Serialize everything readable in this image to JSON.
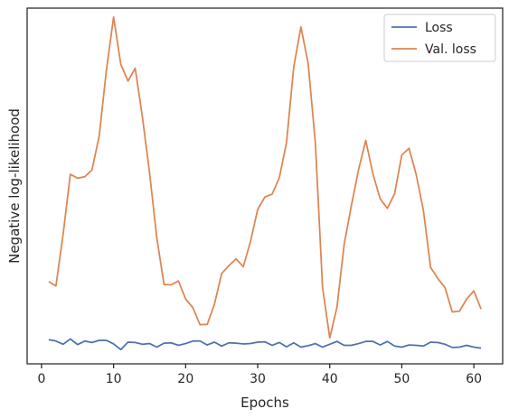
{
  "chart_data": {
    "type": "line",
    "title": "",
    "xlabel": "Epochs",
    "ylabel": "Negative log-likelihood",
    "xlim": [
      -2,
      64
    ],
    "ylim": [
      0,
      100
    ],
    "xticks": [
      0,
      10,
      20,
      30,
      40,
      50,
      60
    ],
    "yticks_shown": false,
    "grid": false,
    "legend_position": "top-right",
    "x": [
      1,
      2,
      3,
      4,
      5,
      6,
      7,
      8,
      9,
      10,
      11,
      12,
      13,
      14,
      15,
      16,
      17,
      18,
      19,
      20,
      21,
      22,
      23,
      24,
      25,
      26,
      27,
      28,
      29,
      30,
      31,
      32,
      33,
      34,
      35,
      36,
      37,
      38,
      39,
      40,
      41,
      42,
      43,
      44,
      45,
      46,
      47,
      48,
      49,
      50,
      51,
      52,
      53,
      54,
      55,
      56,
      57,
      58,
      59,
      60,
      61
    ],
    "series": [
      {
        "name": "Loss",
        "color": "#4c72b0",
        "values": [
          6.8,
          6.4,
          5.5,
          7.0,
          5.4,
          6.4,
          6.0,
          6.6,
          6.6,
          5.6,
          4.0,
          6.1,
          6.0,
          5.5,
          5.7,
          4.7,
          5.8,
          5.9,
          5.2,
          5.7,
          6.4,
          6.4,
          5.3,
          6.1,
          5.0,
          5.9,
          5.8,
          5.6,
          5.7,
          6.1,
          6.2,
          5.2,
          6.0,
          4.8,
          5.9,
          4.7,
          5.1,
          5.7,
          4.7,
          5.5,
          6.3,
          5.2,
          5.2,
          5.7,
          6.3,
          6.3,
          5.3,
          6.3,
          5.0,
          4.7,
          5.3,
          5.2,
          5.0,
          6.1,
          6.0,
          5.5,
          4.6,
          4.7,
          5.2,
          4.7,
          4.4
        ]
      },
      {
        "name": "Val. loss",
        "color": "#dd8452",
        "values": [
          23.1,
          21.9,
          36.5,
          53.3,
          52.2,
          52.6,
          54.5,
          64.0,
          82.5,
          97.5,
          84.2,
          79.5,
          83.1,
          69.4,
          53.6,
          35.4,
          22.3,
          22.2,
          23.3,
          18.2,
          15.8,
          11.0,
          11.1,
          16.8,
          25.4,
          27.6,
          29.5,
          27.3,
          34.4,
          43.4,
          46.9,
          47.7,
          52.3,
          62.2,
          83.4,
          94.7,
          84.5,
          62.2,
          21.5,
          7.3,
          15.9,
          33.6,
          44.5,
          54.6,
          62.8,
          53.3,
          46.4,
          43.7,
          47.8,
          58.7,
          60.6,
          53.2,
          43.1,
          27.1,
          24.0,
          21.4,
          14.6,
          14.8,
          18.2,
          20.5,
          15.4
        ]
      }
    ]
  }
}
